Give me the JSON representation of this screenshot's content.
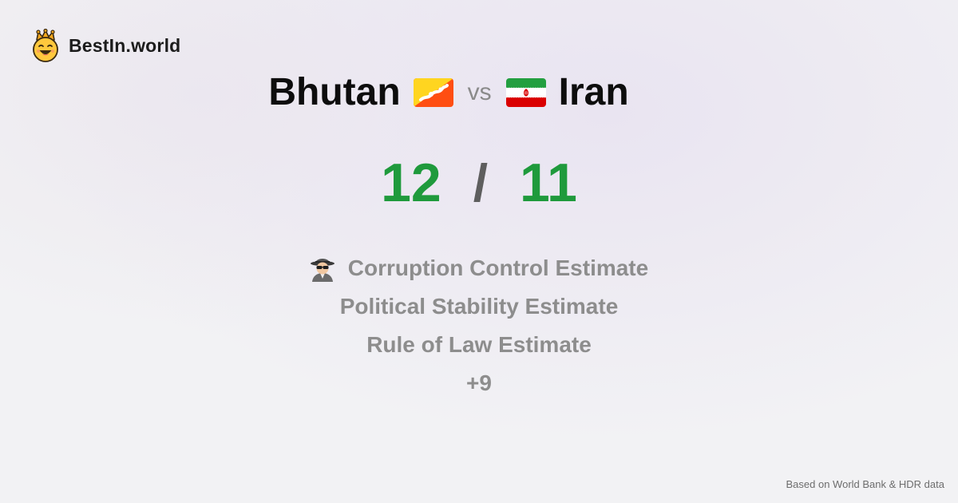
{
  "brand": {
    "name": "BestIn.world",
    "icon": "crowned-smiley-icon"
  },
  "comparison": {
    "left": {
      "name": "Bhutan",
      "flag": "bhutan-flag-icon"
    },
    "vs_label": "vs",
    "right": {
      "name": "Iran",
      "flag": "iran-flag-icon"
    }
  },
  "scores": {
    "left": "12",
    "separator": "/",
    "right": "11",
    "color": "#1f9a3c"
  },
  "metrics": {
    "items": [
      {
        "label": "Corruption Control Estimate",
        "icon": "spy-icon"
      },
      {
        "label": "Political Stability Estimate"
      },
      {
        "label": "Rule of Law Estimate"
      },
      {
        "label": "+9"
      }
    ]
  },
  "footer": {
    "source": "Based on World Bank & HDR data"
  }
}
